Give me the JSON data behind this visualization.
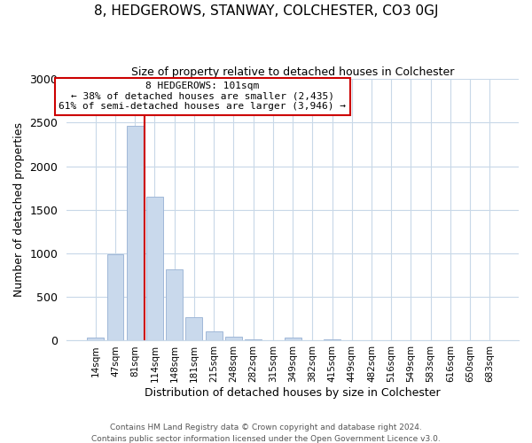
{
  "title": "8, HEDGEROWS, STANWAY, COLCHESTER, CO3 0GJ",
  "subtitle": "Size of property relative to detached houses in Colchester",
  "xlabel": "Distribution of detached houses by size in Colchester",
  "ylabel": "Number of detached properties",
  "bar_labels": [
    "14sqm",
    "47sqm",
    "81sqm",
    "114sqm",
    "148sqm",
    "181sqm",
    "215sqm",
    "248sqm",
    "282sqm",
    "315sqm",
    "349sqm",
    "382sqm",
    "415sqm",
    "449sqm",
    "482sqm",
    "516sqm",
    "549sqm",
    "583sqm",
    "616sqm",
    "650sqm",
    "683sqm"
  ],
  "bar_values": [
    40,
    990,
    2460,
    1650,
    820,
    270,
    110,
    45,
    10,
    5,
    35,
    0,
    15,
    0,
    0,
    0,
    0,
    0,
    0,
    0,
    0
  ],
  "bar_color": "#c9d9ec",
  "bar_edge_color": "#a0b8d8",
  "vline_color": "#cc0000",
  "annotation_title": "8 HEDGEROWS: 101sqm",
  "annotation_line1": "← 38% of detached houses are smaller (2,435)",
  "annotation_line2": "61% of semi-detached houses are larger (3,946) →",
  "annotation_box_color": "#ffffff",
  "annotation_box_edge": "#cc0000",
  "ylim": [
    0,
    3000
  ],
  "yticks": [
    0,
    500,
    1000,
    1500,
    2000,
    2500,
    3000
  ],
  "footer1": "Contains HM Land Registry data © Crown copyright and database right 2024.",
  "footer2": "Contains public sector information licensed under the Open Government Licence v3.0.",
  "bg_color": "#ffffff",
  "grid_color": "#c8d8e8"
}
